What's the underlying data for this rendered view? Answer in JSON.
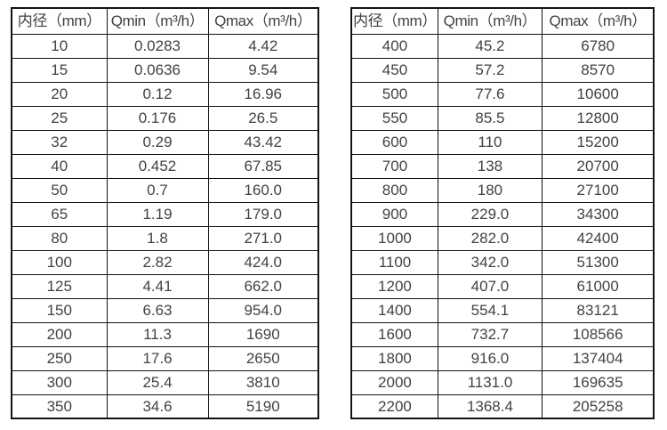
{
  "page": {
    "background_color": "#ffffff",
    "border_color": "#121212",
    "text_color": "#424242"
  },
  "tables": [
    {
      "name": "flow-spec-table-small-diameters",
      "columns": [
        "内径（mm）",
        "Qmin（m³/h）",
        "Qmax（m³/h）"
      ],
      "rows": [
        [
          "10",
          "0.0283",
          "4.42"
        ],
        [
          "15",
          "0.0636",
          "9.54"
        ],
        [
          "20",
          "0.12",
          "16.96"
        ],
        [
          "25",
          "0.176",
          "26.5"
        ],
        [
          "32",
          "0.29",
          "43.42"
        ],
        [
          "40",
          "0.452",
          "67.85"
        ],
        [
          "50",
          "0.7",
          "160.0"
        ],
        [
          "65",
          "1.19",
          "179.0"
        ],
        [
          "80",
          "1.8",
          "271.0"
        ],
        [
          "100",
          "2.82",
          "424.0"
        ],
        [
          "125",
          "4.41",
          "662.0"
        ],
        [
          "150",
          "6.63",
          "954.0"
        ],
        [
          "200",
          "11.3",
          "1690"
        ],
        [
          "250",
          "17.6",
          "2650"
        ],
        [
          "300",
          "25.4",
          "3810"
        ],
        [
          "350",
          "34.6",
          "5190"
        ]
      ]
    },
    {
      "name": "flow-spec-table-large-diameters",
      "columns": [
        "内径（mm）",
        "Qmin（m³/h）",
        "Qmax（m³/h）"
      ],
      "rows": [
        [
          "400",
          "45.2",
          "6780"
        ],
        [
          "450",
          "57.2",
          "8570"
        ],
        [
          "500",
          "77.6",
          "10600"
        ],
        [
          "550",
          "85.5",
          "12800"
        ],
        [
          "600",
          "110",
          "15200"
        ],
        [
          "700",
          "138",
          "20700"
        ],
        [
          "800",
          "180",
          "27100"
        ],
        [
          "900",
          "229.0",
          "34300"
        ],
        [
          "1000",
          "282.0",
          "42400"
        ],
        [
          "1100",
          "342.0",
          "51300"
        ],
        [
          "1200",
          "407.0",
          "61000"
        ],
        [
          "1400",
          "554.1",
          "83121"
        ],
        [
          "1600",
          "732.7",
          "108566"
        ],
        [
          "1800",
          "916.0",
          "137404"
        ],
        [
          "2000",
          "1131.0",
          "169635"
        ],
        [
          "2200",
          "1368.4",
          "205258"
        ]
      ]
    }
  ]
}
